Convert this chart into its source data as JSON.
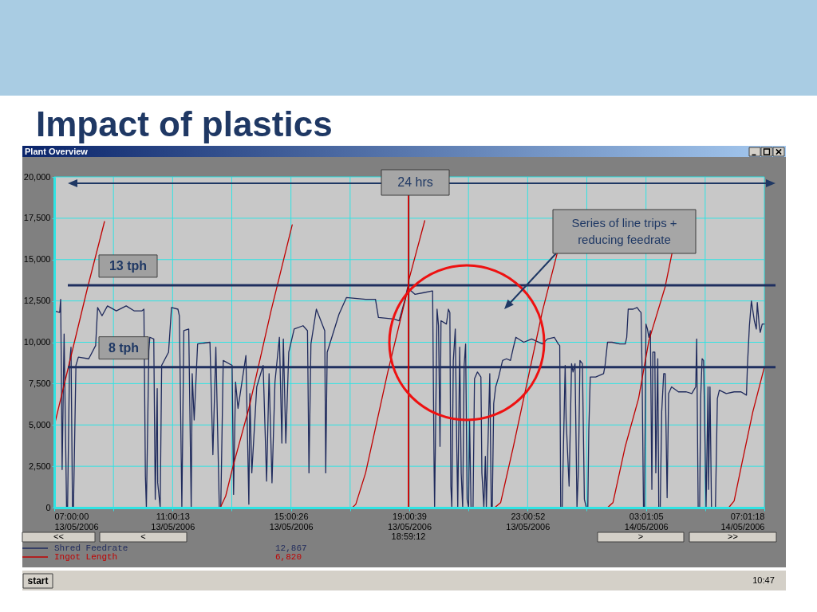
{
  "chart_data": {
    "type": "line",
    "title": "Impact of plastics",
    "subtitle": "Plant Overview",
    "xlim": [
      "2006-05-13T07:00:00",
      "2006-05-14T07:01:18"
    ],
    "ylim": [
      0,
      20000
    ],
    "xticks": [
      {
        "value": "2006-05-13T07:00:00",
        "label": "07:00:00\n13/05/2006"
      },
      {
        "value": "2006-05-13T09:00:06",
        "label": null
      },
      {
        "value": "2006-05-13T11:00:13",
        "label": "11:00:13\n13/05/2006"
      },
      {
        "value": "2006-05-13T13:00:19",
        "label": null
      },
      {
        "value": "2006-05-13T15:00:26",
        "label": "15:00:26\n13/05/2006"
      },
      {
        "value": "2006-05-13T17:00:32",
        "label": null
      },
      {
        "value": "2006-05-13T19:00:39",
        "label": "19:00:39\n13/05/2006"
      },
      {
        "value": "2006-05-13T21:00:45",
        "label": null
      },
      {
        "value": "2006-05-13T23:00:52",
        "label": "23:00:52\n13/05/2006"
      },
      {
        "value": "2006-05-14T01:00:58",
        "label": null
      },
      {
        "value": "2006-05-14T03:01:05",
        "label": "03:01:05\n14/05/2006"
      },
      {
        "value": "2006-05-14T05:01:11",
        "label": null
      },
      {
        "value": "2006-05-14T07:01:18",
        "label": "07:01:18\n14/05/2006"
      }
    ],
    "yticks": [
      0,
      {
        "value": 2500,
        "label": "2,500"
      },
      {
        "value": 5000,
        "label": "5,000"
      },
      {
        "value": 7500,
        "label": "7,500"
      },
      {
        "value": 10000,
        "label": "10,000"
      },
      {
        "value": 12500,
        "label": "12,500"
      },
      {
        "value": 15000,
        "label": "15,000"
      },
      {
        "value": 17500,
        "label": "17,500"
      },
      {
        "value": 20000,
        "label": "20,000"
      }
    ],
    "grid": true,
    "legend": "bottom left",
    "series": [
      {
        "name": "Shred Feedrate",
        "color": "#1f2a5c",
        "x": [
          "2006-05-13T07:00",
          "2006-05-13T07:11",
          "2006-05-13T07:13",
          "2006-05-13T07:14",
          "2006-05-13T07:16",
          "2006-05-13T07:20",
          "2006-05-13T07:25",
          "2006-05-13T07:27",
          "2006-05-13T07:31",
          "2006-05-13T07:34",
          "2006-05-13T07:37",
          "2006-05-13T07:39",
          "2006-05-13T07:44",
          "2006-05-13T07:49",
          "2006-05-13T08:10",
          "2006-05-13T08:24",
          "2006-05-13T08:28",
          "2006-05-13T08:37",
          "2006-05-13T08:48",
          "2006-05-13T09:06",
          "2006-05-13T09:26",
          "2006-05-13T09:42",
          "2006-05-13T09:58",
          "2006-05-13T10:02",
          "2006-05-13T10:05",
          "2006-05-13T10:07",
          "2006-05-13T10:12",
          "2006-05-13T10:14",
          "2006-05-13T10:22",
          "2006-05-13T10:25",
          "2006-05-13T10:29",
          "2006-05-13T10:30",
          "2006-05-13T10:35",
          "2006-05-13T10:38",
          "2006-05-13T10:52",
          "2006-05-13T10:58",
          "2006-05-13T11:11",
          "2006-05-13T11:14",
          "2006-05-13T11:19",
          "2006-05-13T11:23",
          "2006-05-13T11:33",
          "2006-05-13T11:38",
          "2006-05-13T11:40",
          "2006-05-13T11:44",
          "2006-05-13T11:51",
          "2006-05-13T12:16",
          "2006-05-13T12:22",
          "2006-05-13T12:28",
          "2006-05-13T12:35",
          "2006-05-13T12:38",
          "2006-05-13T12:43",
          "2006-05-13T13:01",
          "2006-05-13T13:04",
          "2006-05-13T13:08",
          "2006-05-13T13:13",
          "2006-05-13T13:29",
          "2006-05-13T13:35",
          "2006-05-13T13:37",
          "2006-05-13T13:41",
          "2006-05-13T13:51",
          "2006-05-13T14:04",
          "2006-05-13T14:11",
          "2006-05-13T14:16",
          "2006-05-13T14:22",
          "2006-05-13T14:28",
          "2006-05-13T14:37",
          "2006-05-13T14:42",
          "2006-05-13T14:45",
          "2006-05-13T14:50",
          "2006-05-13T14:56",
          "2006-05-13T15:07",
          "2006-05-13T15:25",
          "2006-05-13T15:34",
          "2006-05-13T15:37",
          "2006-05-13T15:41",
          "2006-05-13T15:52",
          "2006-05-13T16:09",
          "2006-05-13T16:11",
          "2006-05-13T16:14",
          "2006-05-13T16:38",
          "2006-05-13T16:53",
          "2006-05-13T17:32",
          "2006-05-13T17:52",
          "2006-05-13T17:58",
          "2006-05-13T18:30",
          "2006-05-13T18:40",
          "2006-05-13T18:53",
          "2006-05-13T18:57",
          "2006-05-13T19:12",
          "2006-05-13T19:30",
          "2006-05-13T19:47",
          "2006-05-13T19:48",
          "2006-05-13T19:51",
          "2006-05-13T19:52",
          "2006-05-13T19:57",
          "2006-05-13T20:00",
          "2006-05-13T20:03",
          "2006-05-13T20:05",
          "2006-05-13T20:16",
          "2006-05-13T20:20",
          "2006-05-13T20:23",
          "2006-05-13T20:25",
          "2006-05-13T20:27",
          "2006-05-13T20:30",
          "2006-05-13T20:34",
          "2006-05-13T20:37",
          "2006-05-13T20:39",
          "2006-05-13T20:43",
          "2006-05-13T20:46",
          "2006-05-13T20:49",
          "2006-05-13T20:52",
          "2006-05-13T20:55",
          "2006-05-13T20:58",
          "2006-05-13T21:01",
          "2006-05-13T21:03",
          "2006-05-13T21:06",
          "2006-05-13T21:10",
          "2006-05-13T21:13",
          "2006-05-13T21:19",
          "2006-05-13T21:26",
          "2006-05-13T21:28",
          "2006-05-13T21:32",
          "2006-05-13T21:35",
          "2006-05-13T21:37",
          "2006-05-13T21:44",
          "2006-05-13T21:47",
          "2006-05-13T21:49",
          "2006-05-13T21:52",
          "2006-05-13T21:56",
          "2006-05-13T22:02",
          "2006-05-13T22:10",
          "2006-05-13T22:18",
          "2006-05-13T22:26",
          "2006-05-13T22:32",
          "2006-05-13T22:37",
          "2006-05-13T22:53",
          "2006-05-13T23:09",
          "2006-05-13T23:31",
          "2006-05-13T23:41",
          "2006-05-13T23:55",
          "2006-05-14T00:03",
          "2006-05-14T00:06",
          "2006-05-14T00:08",
          "2006-05-14T00:11",
          "2006-05-14T00:17",
          "2006-05-14T00:19",
          "2006-05-14T00:25",
          "2006-05-14T00:30",
          "2006-05-14T00:33",
          "2006-05-14T00:37",
          "2006-05-14T00:41",
          "2006-05-14T00:44",
          "2006-05-14T00:47",
          "2006-05-14T00:52",
          "2006-05-14T00:56",
          "2006-05-14T01:00",
          "2006-05-14T01:03",
          "2006-05-14T01:05",
          "2006-05-14T01:08",
          "2006-05-14T01:19",
          "2006-05-14T01:35",
          "2006-05-14T01:38",
          "2006-05-14T01:43",
          "2006-05-14T01:52",
          "2006-05-14T02:08",
          "2006-05-14T02:19",
          "2006-05-14T02:22",
          "2006-05-14T02:25",
          "2006-05-14T02:35",
          "2006-05-14T02:43",
          "2006-05-14T02:48",
          "2006-05-14T02:51",
          "2006-05-14T02:53",
          "2006-05-14T02:56",
          "2006-05-14T02:58",
          "2006-05-14T03:01",
          "2006-05-14T03:04",
          "2006-05-14T03:07",
          "2006-05-14T03:10",
          "2006-05-14T03:13",
          "2006-05-14T03:15",
          "2006-05-14T03:19",
          "2006-05-14T03:21",
          "2006-05-14T03:25",
          "2006-05-14T03:27",
          "2006-05-14T03:30",
          "2006-05-14T03:33",
          "2006-05-14T03:37",
          "2006-05-14T03:40",
          "2006-05-14T03:44",
          "2006-05-14T03:47",
          "2006-05-14T03:53",
          "2006-05-14T04:07",
          "2006-05-14T04:23",
          "2006-05-14T04:34",
          "2006-05-14T04:42",
          "2006-05-14T04:44",
          "2006-05-14T04:47",
          "2006-05-14T04:50",
          "2006-05-14T04:52",
          "2006-05-14T04:55",
          "2006-05-14T04:58",
          "2006-05-14T05:01",
          "2006-05-14T05:03",
          "2006-05-14T05:07",
          "2006-05-14T05:08",
          "2006-05-14T05:11",
          "2006-05-14T05:14",
          "2006-05-14T05:22",
          "2006-05-14T05:26",
          "2006-05-14T05:30",
          "2006-05-14T05:44",
          "2006-05-14T06:00",
          "2006-05-14T06:14",
          "2006-05-14T06:25",
          "2006-05-14T06:27",
          "2006-05-14T06:31",
          "2006-05-14T06:35",
          "2006-05-14T06:41",
          "2006-05-14T06:45",
          "2006-05-14T06:47",
          "2006-05-14T06:51",
          "2006-05-14T06:53",
          "2006-05-14T06:57",
          "2006-05-14T07:01"
        ],
        "values": [
          11900,
          11800,
          12600,
          9500,
          2300,
          10500,
          0,
          0,
          8700,
          9700,
          0,
          0,
          8600,
          9100,
          9000,
          9800,
          12100,
          11600,
          12200,
          11900,
          12200,
          11900,
          11900,
          12000,
          1900,
          0,
          9500,
          10300,
          10200,
          500,
          7200,
          1500,
          0,
          8600,
          9400,
          12100,
          12000,
          11600,
          0,
          10700,
          10800,
          0,
          8100,
          5300,
          9900,
          10000,
          3200,
          9700,
          0,
          0,
          8900,
          8600,
          800,
          7600,
          6000,
          9200,
          200,
          6900,
          2100,
          7300,
          8600,
          1600,
          8100,
          1500,
          7600,
          10300,
          3900,
          10200,
          3900,
          9400,
          10800,
          11000,
          10700,
          2100,
          9900,
          12000,
          10700,
          2100,
          9400,
          11700,
          12700,
          12600,
          12600,
          11500,
          11400,
          11300,
          12700,
          13300,
          12900,
          13000,
          13100,
          13100,
          2300,
          0,
          12000,
          11000,
          3700,
          11300,
          11100,
          12000,
          11800,
          1300,
          0,
          8900,
          10800,
          3700,
          0,
          9700,
          2100,
          0,
          8600,
          9900,
          500,
          0,
          5300,
          0,
          0,
          7800,
          8200,
          7900,
          2100,
          0,
          3100,
          0,
          8100,
          0,
          0,
          6300,
          7300,
          7900,
          8900,
          9000,
          8900,
          9700,
          10300,
          10000,
          10200,
          9900,
          10200,
          10300,
          9900,
          9800,
          0,
          0,
          8600,
          5300,
          1300,
          8700,
          8200,
          8700,
          0,
          2300,
          8900,
          8700,
          500,
          0,
          0,
          4700,
          7900,
          7900,
          8100,
          8600,
          10000,
          10000,
          9900,
          9900,
          10300,
          12000,
          12000,
          12100,
          11900,
          11800,
          8600,
          0,
          0,
          11100,
          10800,
          10300,
          10700,
          1100,
          9400,
          9400,
          2100,
          9000,
          0,
          0,
          5800,
          8100,
          8100,
          600,
          6900,
          7300,
          7000,
          7000,
          6900,
          7300,
          10200,
          0,
          0,
          6600,
          9000,
          8900,
          3700,
          0,
          7300,
          1100,
          7300,
          0,
          0,
          6600,
          7100,
          6900,
          7000,
          7000,
          6800,
          8600,
          11000,
          12500,
          11300,
          10800,
          12400,
          11000,
          10600,
          11100,
          11100
        ]
      },
      {
        "name": "Ingot Length",
        "color": "#c00000",
        "x": [
          "2006-05-13T07:00",
          "2006-05-13T07:38",
          "2006-05-13T08:08",
          "2006-05-13T08:42",
          "2006-05-13T10:42",
          "2006-05-13T12:37",
          "2006-05-13T12:48",
          "2006-05-13T13:02",
          "2006-05-13T13:35",
          "2006-05-13T14:20",
          "2006-05-13T15:03",
          "2006-05-13T16:00",
          "2006-05-13T17:05",
          "2006-05-13T17:12",
          "2006-05-13T17:32",
          "2006-05-13T18:17",
          "2006-05-13T18:56",
          "2006-05-13T19:00",
          "2006-05-13T19:32",
          "2006-05-13T20:42",
          "2006-05-13T21:54",
          "2006-05-13T22:06",
          "2006-05-13T22:32",
          "2006-05-13T23:00",
          "2006-05-13T23:31",
          "2006-05-14T00:01",
          "2006-05-14T00:54",
          "2006-05-14T01:43",
          "2006-05-14T01:54",
          "2006-05-14T02:19",
          "2006-05-14T02:46",
          "2006-05-14T03:07",
          "2006-05-14T03:40",
          "2006-05-14T03:54",
          "2006-05-14T04:54",
          "2006-05-14T05:49",
          "2006-05-14T06:00",
          "2006-05-14T06:16",
          "2006-05-14T06:38",
          "2006-05-14T07:01"
        ],
        "values": [
          4950,
          9650,
          13350,
          17300,
          null,
          0,
          700,
          2400,
          6000,
          11900,
          17100,
          null,
          0,
          200,
          2100,
          8200,
          13000,
          13800,
          17350,
          null,
          0,
          300,
          3700,
          7600,
          11900,
          15400,
          null,
          0,
          300,
          3700,
          6600,
          10100,
          13350,
          15400,
          null,
          0,
          400,
          2700,
          5800,
          8450
        ]
      }
    ],
    "ref_lines": [
      {
        "axis": "y",
        "value": 13450,
        "label": "13 tph",
        "color": "#1f2f5f"
      },
      {
        "axis": "y",
        "value": 8500,
        "label": "8 tph",
        "color": "#1f2f5f"
      },
      {
        "axis": "x",
        "value": "2006-05-13T18:59:12",
        "color": "#cc0000"
      }
    ],
    "annotations": [
      "24 hrs",
      "Series of line trips + reducing feedrate",
      "18:59:12",
      "12,867",
      "6,820",
      "<<",
      "<",
      ">",
      ">>",
      "start",
      "10:47"
    ]
  }
}
